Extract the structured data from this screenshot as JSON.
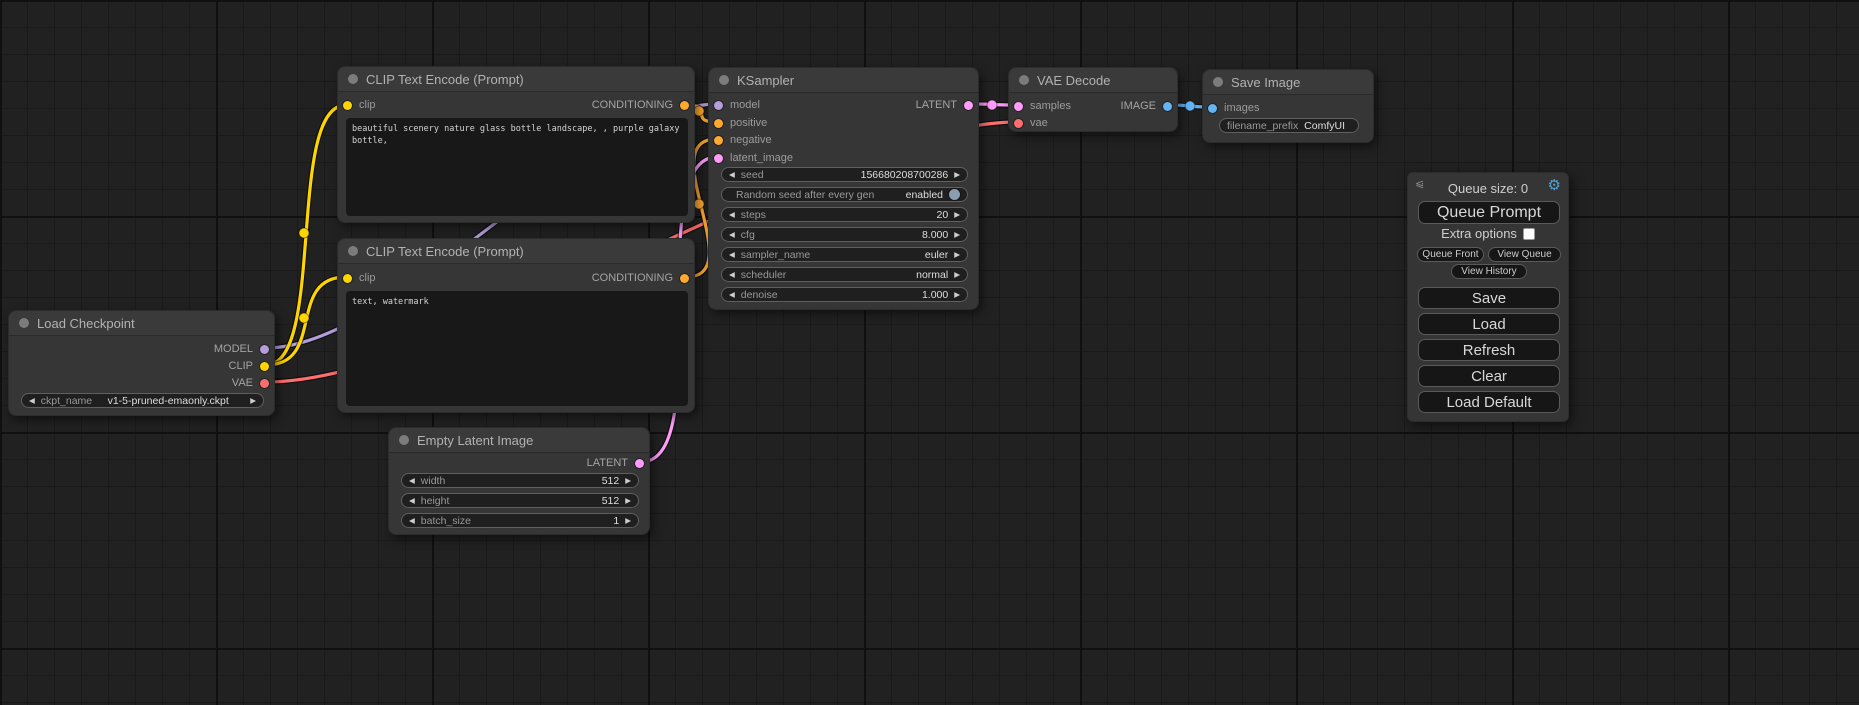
{
  "colors": {
    "model": "#B39DDB",
    "clip": "#FFD500",
    "vae": "#FF6E6E",
    "conditioning": "#FFA931",
    "latent": "#FF9CF9",
    "image": "#64B5F6",
    "gear": "#4EA3D8"
  },
  "nodes": {
    "load_checkpoint": {
      "title": "Load Checkpoint",
      "outputs": [
        "MODEL",
        "CLIP",
        "VAE"
      ],
      "widget": {
        "label": "ckpt_name",
        "value": "v1-5-pruned-emaonly.ckpt"
      }
    },
    "clip_positive": {
      "title": "CLIP Text Encode (Prompt)",
      "input": "clip",
      "output": "CONDITIONING",
      "text": "beautiful scenery nature glass bottle landscape, , purple galaxy bottle,"
    },
    "clip_negative": {
      "title": "CLIP Text Encode (Prompt)",
      "input": "clip",
      "output": "CONDITIONING",
      "text": "text, watermark"
    },
    "empty_latent": {
      "title": "Empty Latent Image",
      "output": "LATENT",
      "widgets": [
        {
          "label": "width",
          "value": "512"
        },
        {
          "label": "height",
          "value": "512"
        },
        {
          "label": "batch_size",
          "value": "1"
        }
      ]
    },
    "ksampler": {
      "title": "KSampler",
      "inputs": [
        "model",
        "positive",
        "negative",
        "latent_image"
      ],
      "output": "LATENT",
      "widgets": [
        {
          "label": "seed",
          "value": "156680208700286"
        },
        {
          "label": "Random seed after every gen",
          "value": "enabled"
        },
        {
          "label": "steps",
          "value": "20"
        },
        {
          "label": "cfg",
          "value": "8.000"
        },
        {
          "label": "sampler_name",
          "value": "euler"
        },
        {
          "label": "scheduler",
          "value": "normal"
        },
        {
          "label": "denoise",
          "value": "1.000"
        }
      ]
    },
    "vae_decode": {
      "title": "VAE Decode",
      "inputs": [
        "samples",
        "vae"
      ],
      "output": "IMAGE"
    },
    "save_image": {
      "title": "Save Image",
      "input": "images",
      "widget": {
        "label": "filename_prefix",
        "value": "ComfyUI"
      }
    }
  },
  "queue_panel": {
    "queue_size": "Queue size: 0",
    "queue_prompt": "Queue Prompt",
    "extra_options": "Extra options",
    "queue_front": "Queue Front",
    "view_queue": "View Queue",
    "view_history": "View History",
    "save": "Save",
    "load": "Load",
    "refresh": "Refresh",
    "clear": "Clear",
    "load_default": "Load Default"
  }
}
